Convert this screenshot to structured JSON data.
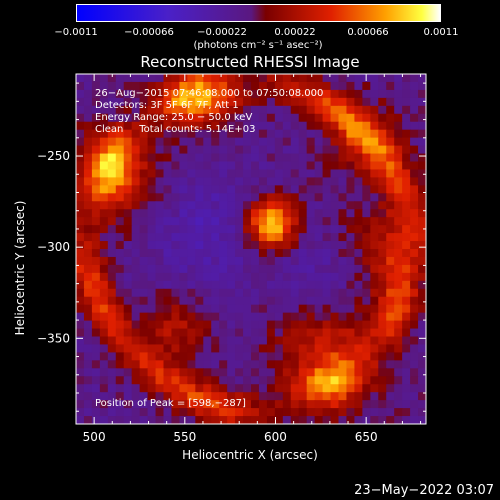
{
  "colorbar": {
    "ticks": [
      "−0.0011",
      "−0.00066",
      "−0.00022",
      "0.00022",
      "0.00066",
      "0.0011"
    ],
    "tick_values": [
      -0.0011,
      -0.00066,
      -0.00022,
      0.00022,
      0.00066,
      0.0011
    ],
    "range": [
      -0.0011,
      0.0011
    ],
    "units": "(photons cm⁻² s⁻¹ asec⁻²)"
  },
  "chart_data": {
    "type": "heatmap",
    "title": "Reconstructed RHESSI Image",
    "xlabel": "Heliocentric X (arcsec)",
    "ylabel": "Heliocentric Y (arcsec)",
    "xlim": [
      490,
      683
    ],
    "ylim": [
      -397,
      -205
    ],
    "xticks": [
      500,
      550,
      600,
      650
    ],
    "yticks": [
      -250,
      -300,
      -350
    ],
    "xtick_labels": [
      "500",
      "550",
      "600",
      "650"
    ],
    "ytick_labels": [
      "−250",
      "−300",
      "−350"
    ],
    "annotations": [
      "26−Aug−2015 07:46:08.000 to 07:50:08.000",
      "Detectors: 3F 5F 6F 7F, Att 1",
      "Energy Range: 25.0 − 50.0 keV",
      "Clean     Total counts: 5.14E+03"
    ],
    "peak_label": "Position of Peak = [598,−287]",
    "peak": [
      598,
      -287
    ],
    "colormap": "bluewhite-diverging"
  },
  "datestamp": "23−May−2022 03:07"
}
